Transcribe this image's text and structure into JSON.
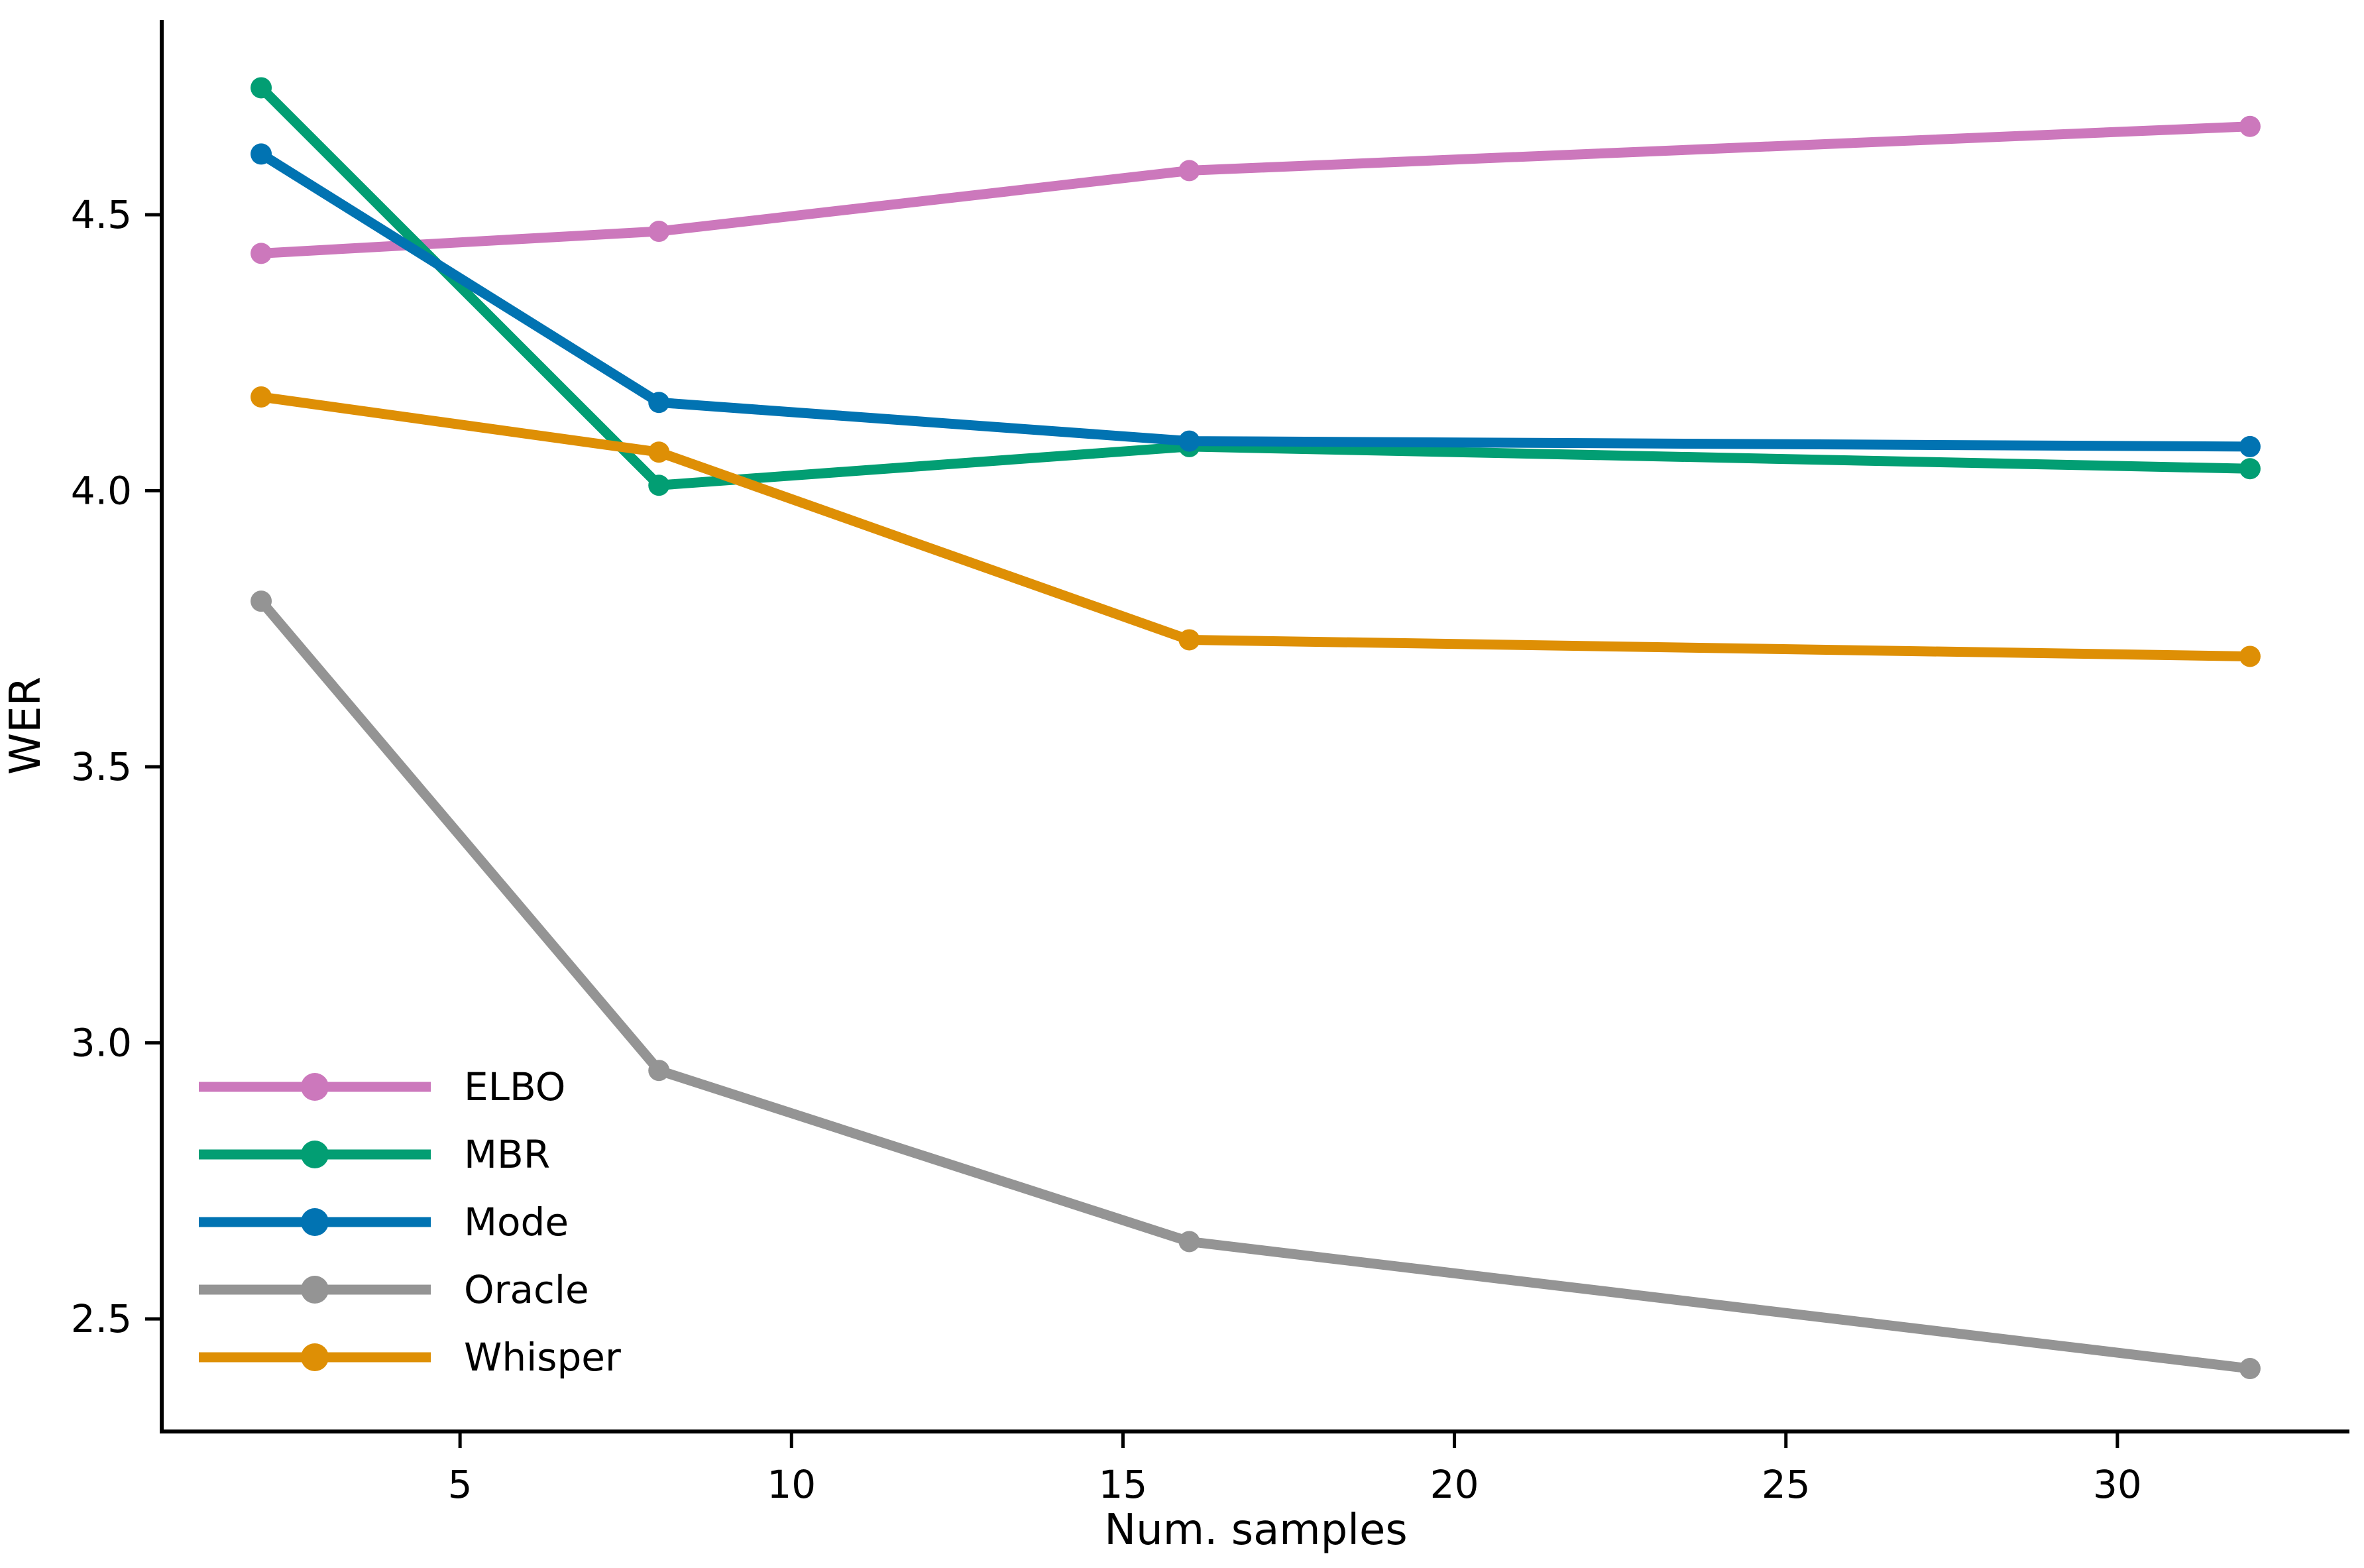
{
  "chart_data": {
    "type": "line",
    "title": "",
    "xlabel": "Num. samples",
    "ylabel": "WER",
    "x": [
      2,
      8,
      16,
      32
    ],
    "series": [
      {
        "name": "ELBO",
        "color": "#CC78BC",
        "values": [
          4.43,
          4.47,
          4.58,
          4.66
        ]
      },
      {
        "name": "MBR",
        "color": "#029E73",
        "values": [
          4.73,
          4.01,
          4.08,
          4.04
        ]
      },
      {
        "name": "Mode",
        "color": "#0173B2",
        "values": [
          4.61,
          4.16,
          4.09,
          4.08
        ]
      },
      {
        "name": "Oracle",
        "color": "#949494",
        "values": [
          3.8,
          2.95,
          2.64,
          2.41
        ]
      },
      {
        "name": "Whisper",
        "color": "#DE8F05",
        "values": [
          4.17,
          4.07,
          3.73,
          3.7
        ]
      }
    ],
    "xticks": [
      5,
      10,
      15,
      20,
      25,
      30
    ],
    "yticks": [
      2.5,
      3.0,
      3.5,
      4.0,
      4.5
    ],
    "xlim": [
      0.5,
      33.5
    ],
    "ylim": [
      2.296,
      4.853
    ],
    "legend_position": "lower-left",
    "legend_entries": [
      "ELBO",
      "MBR",
      "Mode",
      "Oracle",
      "Whisper"
    ],
    "grid": false,
    "axis_color": "#000000",
    "background": "#ffffff"
  }
}
